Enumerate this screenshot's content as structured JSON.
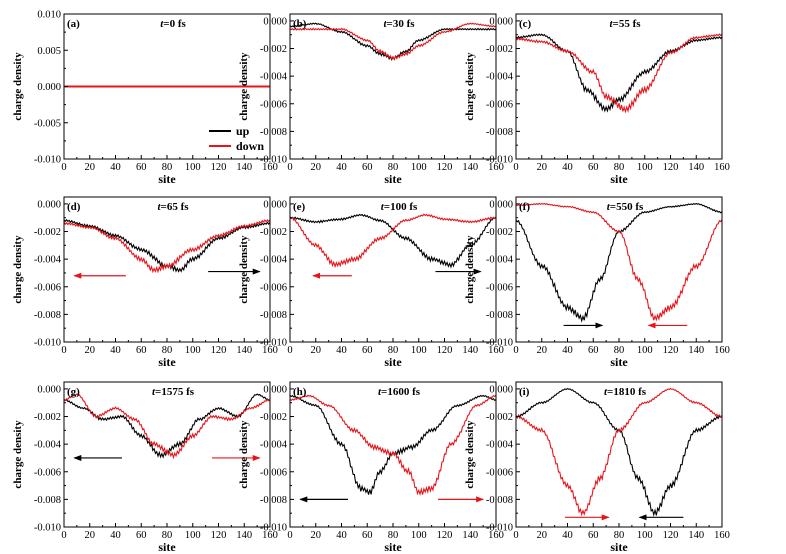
{
  "figure": {
    "colors": {
      "up": "#000000",
      "down": "#e8141a"
    },
    "legend": {
      "up": "up",
      "down": "down"
    }
  },
  "chart_data": [
    {
      "id": "a",
      "type": "line",
      "panel_label": "(a)",
      "time_var": "t",
      "time_text": "=0 fs",
      "xlabel": "site",
      "ylabel": "charge density",
      "xlim": [
        0,
        160
      ],
      "ylim": [
        -0.01,
        0.01
      ],
      "xticks": [
        "0",
        "20",
        "40",
        "60",
        "80",
        "100",
        "120",
        "140",
        "160"
      ],
      "yticks": [
        "0.010",
        "0.005",
        "0.000",
        "-0.005",
        "-0.010"
      ],
      "legend_position": "center-right",
      "series": [
        {
          "name": "up",
          "color": "#000000",
          "x": [
            0,
            160
          ],
          "y": [
            0.0,
            0.0
          ]
        },
        {
          "name": "down",
          "color": "#e8141a",
          "x": [
            0,
            160
          ],
          "y": [
            0.0,
            0.0
          ]
        }
      ],
      "arrows": []
    },
    {
      "id": "b",
      "type": "line",
      "panel_label": "(b)",
      "time_var": "t",
      "time_text": "=30 fs",
      "xlabel": "site",
      "ylabel": "charge density",
      "xlim": [
        0,
        160
      ],
      "ylim": [
        -0.01,
        0.0005
      ],
      "xticks": [
        "0",
        "20",
        "40",
        "60",
        "80",
        "100",
        "120",
        "140",
        "160"
      ],
      "yticks": [
        "0.000",
        "-0.002",
        "-0.004",
        "-0.006",
        "-0.008",
        "-0.010"
      ],
      "series": [
        {
          "name": "up",
          "color": "#000000",
          "x": [
            0,
            20,
            40,
            60,
            70,
            80,
            90,
            100,
            120,
            140,
            160
          ],
          "y": [
            -0.0004,
            -0.0002,
            -0.0008,
            -0.0018,
            -0.0024,
            -0.0027,
            -0.0022,
            -0.0014,
            -0.0006,
            -0.0006,
            -0.0006
          ]
        },
        {
          "name": "down",
          "color": "#e8141a",
          "x": [
            0,
            20,
            40,
            60,
            70,
            80,
            90,
            100,
            120,
            140,
            160
          ],
          "y": [
            -0.0006,
            -0.0006,
            -0.0006,
            -0.0014,
            -0.0022,
            -0.0027,
            -0.0024,
            -0.0018,
            -0.0008,
            -0.0002,
            -0.0004
          ]
        }
      ],
      "arrows": []
    },
    {
      "id": "c",
      "type": "line",
      "panel_label": "(c)",
      "time_var": "t",
      "time_text": "=55 fs",
      "xlabel": "site",
      "ylabel": "charge density",
      "xlim": [
        0,
        160
      ],
      "ylim": [
        -0.01,
        0.0005
      ],
      "xticks": [
        "0",
        "20",
        "40",
        "60",
        "80",
        "100",
        "120",
        "140",
        "160"
      ],
      "yticks": [
        "0.000",
        "-0.002",
        "-0.004",
        "-0.006",
        "-0.008",
        "-0.010"
      ],
      "series": [
        {
          "name": "up",
          "color": "#000000",
          "x": [
            0,
            20,
            40,
            55,
            70,
            80,
            100,
            120,
            140,
            160
          ],
          "y": [
            -0.0012,
            -0.001,
            -0.0022,
            -0.005,
            -0.0064,
            -0.0057,
            -0.0037,
            -0.0022,
            -0.0014,
            -0.0012
          ]
        },
        {
          "name": "down",
          "color": "#e8141a",
          "x": [
            0,
            20,
            40,
            60,
            70,
            85,
            100,
            120,
            140,
            160
          ],
          "y": [
            -0.0013,
            -0.0015,
            -0.0022,
            -0.0037,
            -0.0055,
            -0.0064,
            -0.005,
            -0.0023,
            -0.0012,
            -0.001
          ]
        }
      ],
      "arrows": []
    },
    {
      "id": "d",
      "type": "line",
      "panel_label": "(d)",
      "time_var": "t",
      "time_text": "=65 fs",
      "xlabel": "site",
      "ylabel": "charge density",
      "xlim": [
        0,
        160
      ],
      "ylim": [
        -0.01,
        0.0005
      ],
      "xticks": [
        "0",
        "20",
        "40",
        "60",
        "80",
        "100",
        "120",
        "140",
        "160"
      ],
      "yticks": [
        "0.000",
        "-0.002",
        "-0.004",
        "-0.006",
        "-0.008",
        "-0.010"
      ],
      "series": [
        {
          "name": "up",
          "color": "#000000",
          "x": [
            0,
            20,
            40,
            60,
            80,
            90,
            100,
            120,
            140,
            160
          ],
          "y": [
            -0.0012,
            -0.0016,
            -0.0023,
            -0.0033,
            -0.0045,
            -0.0048,
            -0.004,
            -0.0025,
            -0.0017,
            -0.0014
          ]
        },
        {
          "name": "down",
          "color": "#e8141a",
          "x": [
            0,
            20,
            40,
            60,
            70,
            80,
            100,
            120,
            140,
            160
          ],
          "y": [
            -0.0014,
            -0.0017,
            -0.0025,
            -0.004,
            -0.0048,
            -0.0045,
            -0.0033,
            -0.0023,
            -0.0016,
            -0.0012
          ]
        }
      ],
      "arrows": [
        {
          "color": "#e8141a",
          "from": [
            48,
            -0.0052
          ],
          "to": [
            8,
            -0.0052
          ]
        },
        {
          "color": "#000000",
          "from": [
            112,
            -0.0049
          ],
          "to": [
            152,
            -0.0049
          ]
        }
      ]
    },
    {
      "id": "e",
      "type": "line",
      "panel_label": "(e)",
      "time_var": "t",
      "time_text": "=100 fs",
      "xlabel": "site",
      "ylabel": "charge density",
      "xlim": [
        0,
        160
      ],
      "ylim": [
        -0.01,
        0.0005
      ],
      "xticks": [
        "0",
        "20",
        "40",
        "60",
        "80",
        "100",
        "120",
        "140",
        "160"
      ],
      "yticks": [
        "0.000",
        "-0.002",
        "-0.004",
        "-0.006",
        "-0.008",
        "-0.010"
      ],
      "series": [
        {
          "name": "up",
          "color": "#000000",
          "x": [
            0,
            20,
            40,
            55,
            70,
            90,
            110,
            125,
            140,
            160
          ],
          "y": [
            -0.001,
            -0.0013,
            -0.0011,
            -0.0008,
            -0.0012,
            -0.0025,
            -0.004,
            -0.0044,
            -0.003,
            -0.001
          ]
        },
        {
          "name": "down",
          "color": "#e8141a",
          "x": [
            0,
            20,
            35,
            50,
            70,
            90,
            105,
            120,
            140,
            160
          ],
          "y": [
            -0.001,
            -0.003,
            -0.0044,
            -0.004,
            -0.0025,
            -0.0012,
            -0.0008,
            -0.0011,
            -0.0013,
            -0.001
          ]
        }
      ],
      "arrows": [
        {
          "color": "#e8141a",
          "from": [
            48,
            -0.0052
          ],
          "to": [
            18,
            -0.0052
          ]
        },
        {
          "color": "#000000",
          "from": [
            113,
            -0.0049
          ],
          "to": [
            148,
            -0.0049
          ]
        }
      ]
    },
    {
      "id": "f",
      "type": "line",
      "panel_label": "(f)",
      "time_var": "t",
      "time_text": "=550 fs",
      "xlabel": "site",
      "ylabel": "charge density",
      "xlim": [
        0,
        160
      ],
      "ylim": [
        -0.01,
        0.0005
      ],
      "xticks": [
        "0",
        "20",
        "40",
        "60",
        "80",
        "100",
        "120",
        "140",
        "160"
      ],
      "yticks": [
        "0.000",
        "-0.002",
        "-0.004",
        "-0.006",
        "-0.008",
        "-0.010"
      ],
      "series": [
        {
          "name": "up",
          "color": "#000000",
          "x": [
            0,
            20,
            40,
            52,
            65,
            80,
            100,
            120,
            140,
            160
          ],
          "y": [
            -0.0012,
            -0.0045,
            -0.0075,
            -0.0083,
            -0.0055,
            -0.002,
            -0.0006,
            -0.0002,
            0.0,
            -0.0006
          ]
        },
        {
          "name": "down",
          "color": "#e8141a",
          "x": [
            0,
            20,
            40,
            60,
            80,
            95,
            108,
            120,
            140,
            160
          ],
          "y": [
            -0.0001,
            0.0,
            -0.0002,
            -0.0006,
            -0.002,
            -0.0055,
            -0.0083,
            -0.0075,
            -0.0045,
            -0.0012
          ]
        }
      ],
      "arrows": [
        {
          "color": "#000000",
          "from": [
            37,
            -0.0088
          ],
          "to": [
            67,
            -0.0088
          ]
        },
        {
          "color": "#e8141a",
          "from": [
            133,
            -0.0088
          ],
          "to": [
            103,
            -0.0088
          ]
        }
      ]
    },
    {
      "id": "g",
      "type": "line",
      "panel_label": "(g)",
      "time_var": "t",
      "time_text": "=1575 fs",
      "xlabel": "site",
      "ylabel": "charge density",
      "xlim": [
        0,
        160
      ],
      "ylim": [
        -0.01,
        0.0005
      ],
      "xticks": [
        "0",
        "20",
        "40",
        "60",
        "80",
        "100",
        "120",
        "140",
        "160"
      ],
      "yticks": [
        "0.000",
        "-0.002",
        "-0.004",
        "-0.006",
        "-0.008",
        "-0.010"
      ],
      "series": [
        {
          "name": "up",
          "color": "#000000",
          "x": [
            0,
            15,
            30,
            45,
            60,
            75,
            90,
            105,
            120,
            135,
            150,
            160
          ],
          "y": [
            -0.0008,
            -0.0014,
            -0.0022,
            -0.002,
            -0.0034,
            -0.0048,
            -0.004,
            -0.0022,
            -0.0014,
            -0.002,
            -0.0004,
            -0.0008
          ]
        },
        {
          "name": "down",
          "color": "#e8141a",
          "x": [
            0,
            10,
            25,
            40,
            55,
            70,
            85,
            100,
            115,
            130,
            145,
            160
          ],
          "y": [
            -0.0008,
            -0.0004,
            -0.002,
            -0.0014,
            -0.0022,
            -0.004,
            -0.0048,
            -0.0034,
            -0.002,
            -0.0022,
            -0.0014,
            -0.0008
          ]
        }
      ],
      "arrows": [
        {
          "color": "#000000",
          "from": [
            45,
            -0.005
          ],
          "to": [
            8,
            -0.005
          ]
        },
        {
          "color": "#e8141a",
          "from": [
            115,
            -0.005
          ],
          "to": [
            152,
            -0.005
          ]
        }
      ]
    },
    {
      "id": "h",
      "type": "line",
      "panel_label": "(h)",
      "time_var": "t",
      "time_text": "=1600 fs",
      "xlabel": "site",
      "ylabel": "charge density",
      "xlim": [
        0,
        160
      ],
      "ylim": [
        -0.01,
        0.0005
      ],
      "xticks": [
        "0",
        "20",
        "40",
        "60",
        "80",
        "100",
        "120",
        "140",
        "160"
      ],
      "yticks": [
        "0.000",
        "-0.002",
        "-0.004",
        "-0.006",
        "-0.008",
        "-0.010"
      ],
      "series": [
        {
          "name": "up",
          "color": "#000000",
          "x": [
            0,
            20,
            40,
            55,
            62,
            70,
            80,
            95,
            110,
            130,
            150,
            160
          ],
          "y": [
            -0.0005,
            -0.0012,
            -0.004,
            -0.0072,
            -0.0075,
            -0.006,
            -0.0047,
            -0.0042,
            -0.003,
            -0.0012,
            -0.0005,
            -0.0008
          ]
        },
        {
          "name": "down",
          "color": "#e8141a",
          "x": [
            0,
            15,
            30,
            50,
            65,
            80,
            92,
            100,
            110,
            125,
            145,
            160
          ],
          "y": [
            -0.0008,
            -0.0005,
            -0.0012,
            -0.003,
            -0.0042,
            -0.0047,
            -0.006,
            -0.0075,
            -0.0072,
            -0.004,
            -0.0012,
            -0.0005
          ]
        }
      ],
      "arrows": [
        {
          "color": "#000000",
          "from": [
            45,
            -0.008
          ],
          "to": [
            8,
            -0.008
          ]
        },
        {
          "color": "#e8141a",
          "from": [
            115,
            -0.008
          ],
          "to": [
            150,
            -0.008
          ]
        }
      ]
    },
    {
      "id": "i",
      "type": "line",
      "panel_label": "(i)",
      "time_var": "t",
      "time_text": "=1810 fs",
      "xlabel": "site",
      "ylabel": "charge density",
      "xlim": [
        0,
        160
      ],
      "ylim": [
        -0.01,
        0.0005
      ],
      "xticks": [
        "0",
        "20",
        "40",
        "60",
        "80",
        "100",
        "120",
        "140",
        "160"
      ],
      "yticks": [
        "0.000",
        "-0.002",
        "-0.004",
        "-0.006",
        "-0.008",
        "-0.010"
      ],
      "series": [
        {
          "name": "up",
          "color": "#000000",
          "x": [
            0,
            20,
            40,
            60,
            80,
            95,
            108,
            120,
            140,
            160
          ],
          "y": [
            -0.002,
            -0.001,
            0.0,
            -0.001,
            -0.003,
            -0.0065,
            -0.009,
            -0.007,
            -0.003,
            -0.002
          ]
        },
        {
          "name": "down",
          "color": "#e8141a",
          "x": [
            0,
            20,
            40,
            52,
            65,
            80,
            100,
            120,
            140,
            160
          ],
          "y": [
            -0.002,
            -0.003,
            -0.007,
            -0.009,
            -0.0065,
            -0.003,
            -0.001,
            0.0,
            -0.001,
            -0.002
          ]
        }
      ],
      "arrows": [
        {
          "color": "#e8141a",
          "from": [
            38,
            -0.0093
          ],
          "to": [
            72,
            -0.0093
          ]
        },
        {
          "color": "#000000",
          "from": [
            130,
            -0.0093
          ],
          "to": [
            96,
            -0.0093
          ]
        }
      ]
    }
  ]
}
